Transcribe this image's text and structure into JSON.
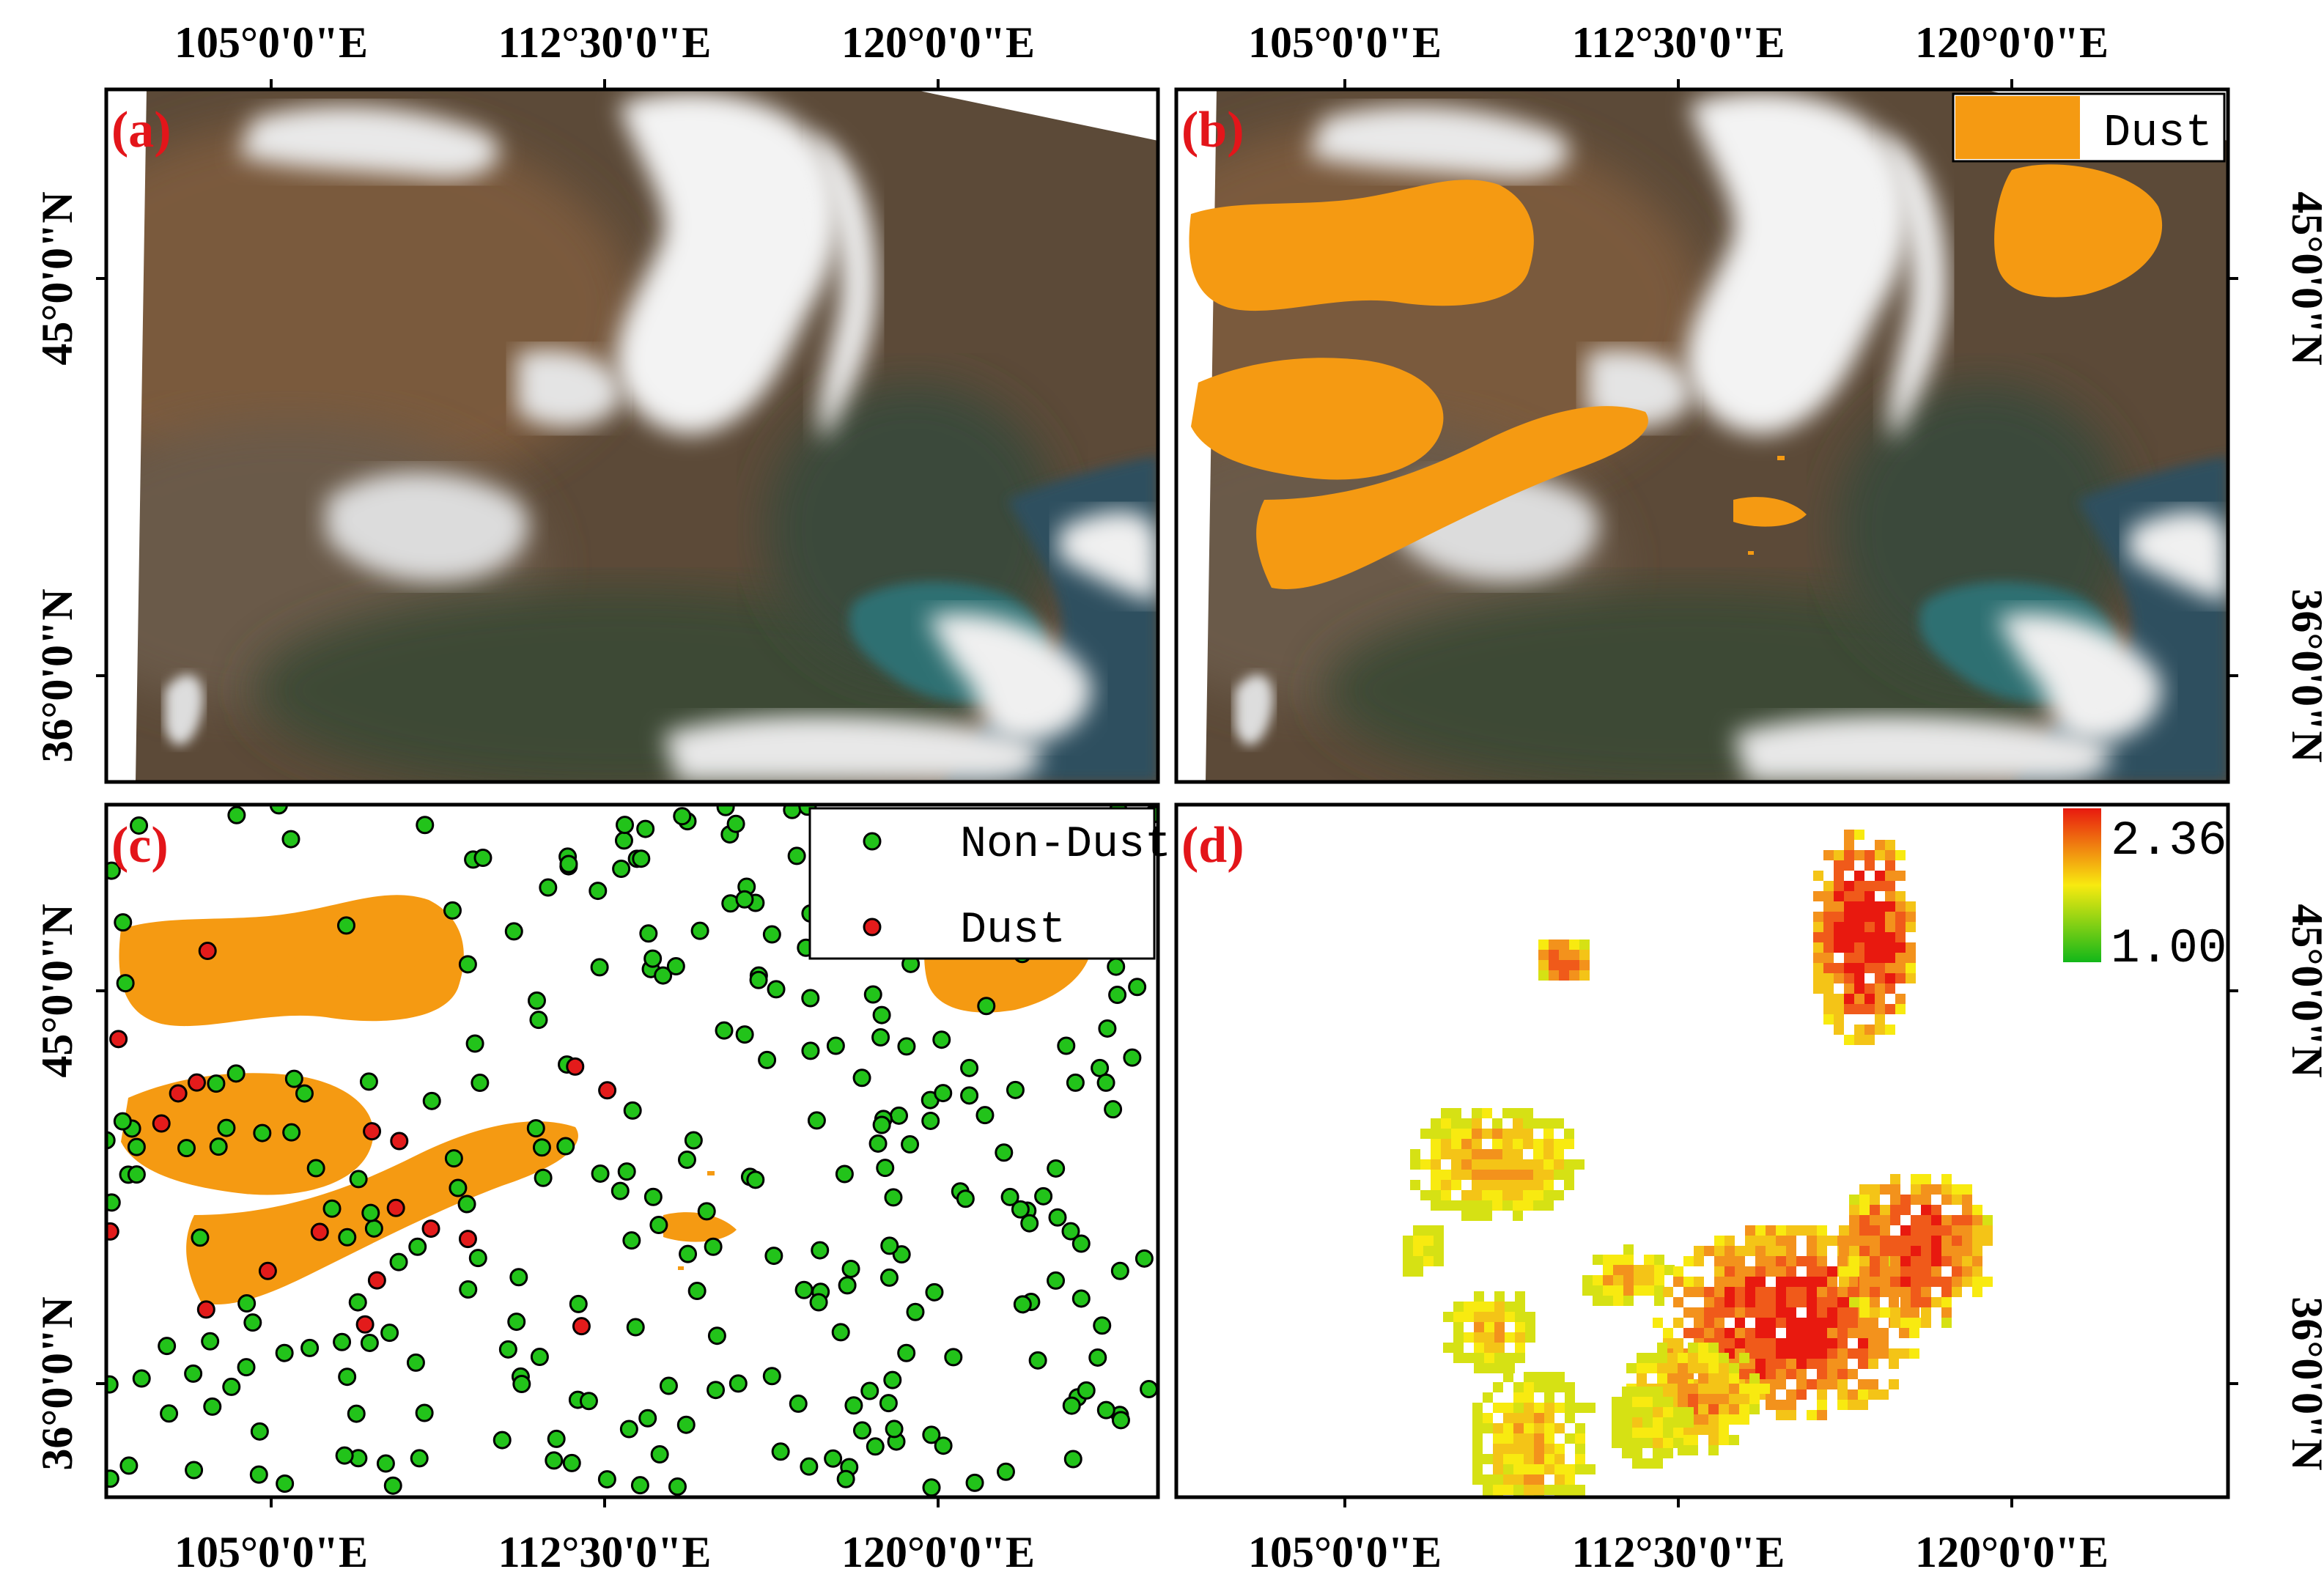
{
  "longitude_ticks": [
    "105°0'0\"E",
    "112°30'0\"E",
    "120°0'0\"E"
  ],
  "latitude_ticks": [
    "45°0'0\"N",
    "36°0'0\"N"
  ],
  "panels": {
    "a": {
      "label": "(a)"
    },
    "b": {
      "label": "(b)",
      "legend": {
        "label": "Dust",
        "color": "#f59a12"
      }
    },
    "c": {
      "label": "(c)",
      "legend": [
        {
          "label": "Non-Dust",
          "color": "#22c31a"
        },
        {
          "label": "Dust",
          "color": "#e31b1b"
        }
      ]
    },
    "d": {
      "label": "(d)",
      "colorbar": {
        "max": "2.36",
        "min": "1.00",
        "colors": [
          "#e8190f",
          "#f8ea10",
          "#12b719"
        ]
      }
    }
  },
  "colors": {
    "dust_mask": "#f59a12",
    "land": "#5c4a38",
    "cloud": "#f3f3f3",
    "sea": "#2f6f72",
    "label_red": "#e3151a"
  }
}
